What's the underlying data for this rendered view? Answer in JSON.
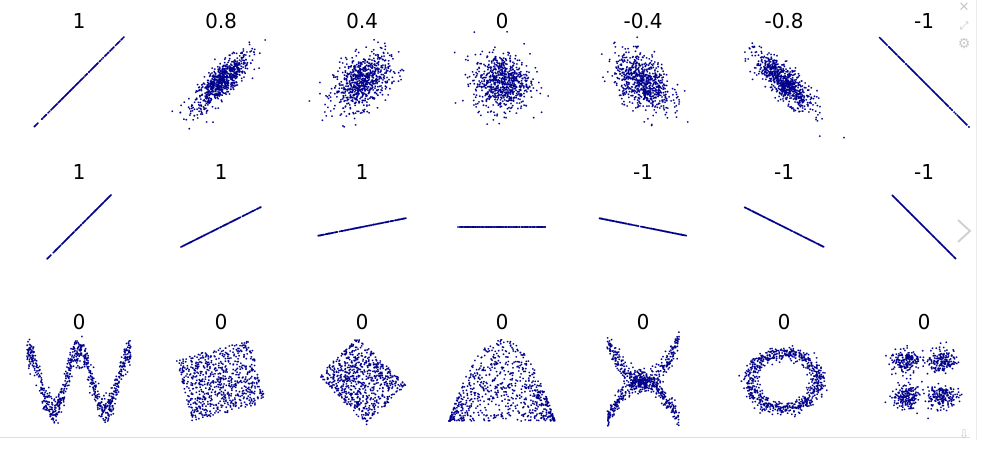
{
  "accent": "#00008b",
  "toolbar": {
    "close_icon": "close-icon",
    "expand_icon": "expand-icon",
    "settings_icon": "gear-icon",
    "next_icon": "chevron-right-icon",
    "download_icon": "download-icon"
  },
  "chart_data": [
    {
      "type": "scatter",
      "row": 1,
      "column": 1,
      "title": "1",
      "pattern": "linear",
      "correlation": 1
    },
    {
      "type": "scatter",
      "row": 1,
      "column": 2,
      "title": "0.8",
      "pattern": "gaussian-cloud",
      "correlation": 0.8
    },
    {
      "type": "scatter",
      "row": 1,
      "column": 3,
      "title": "0.4",
      "pattern": "gaussian-cloud",
      "correlation": 0.4
    },
    {
      "type": "scatter",
      "row": 1,
      "column": 4,
      "title": "0",
      "pattern": "gaussian-cloud",
      "correlation": 0
    },
    {
      "type": "scatter",
      "row": 1,
      "column": 5,
      "title": "-0.4",
      "pattern": "gaussian-cloud",
      "correlation": -0.4
    },
    {
      "type": "scatter",
      "row": 1,
      "column": 6,
      "title": "-0.8",
      "pattern": "gaussian-cloud",
      "correlation": -0.8
    },
    {
      "type": "scatter",
      "row": 1,
      "column": 7,
      "title": "-1",
      "pattern": "linear",
      "correlation": -1
    },
    {
      "type": "scatter",
      "row": 2,
      "column": 1,
      "title": "1",
      "pattern": "linear",
      "slope": 1.0
    },
    {
      "type": "scatter",
      "row": 2,
      "column": 2,
      "title": "1",
      "pattern": "linear",
      "slope": 0.5
    },
    {
      "type": "scatter",
      "row": 2,
      "column": 3,
      "title": "1",
      "pattern": "linear",
      "slope": 0.2
    },
    {
      "type": "scatter",
      "row": 2,
      "column": 4,
      "title": "",
      "pattern": "linear",
      "slope": 0
    },
    {
      "type": "scatter",
      "row": 2,
      "column": 5,
      "title": "-1",
      "pattern": "linear",
      "slope": -0.2
    },
    {
      "type": "scatter",
      "row": 2,
      "column": 6,
      "title": "-1",
      "pattern": "linear",
      "slope": -0.5
    },
    {
      "type": "scatter",
      "row": 2,
      "column": 7,
      "title": "-1",
      "pattern": "linear",
      "slope": -1.0
    },
    {
      "type": "scatter",
      "row": 3,
      "column": 1,
      "title": "0",
      "pattern": "wave"
    },
    {
      "type": "scatter",
      "row": 3,
      "column": 2,
      "title": "0",
      "pattern": "rotated-square"
    },
    {
      "type": "scatter",
      "row": 3,
      "column": 3,
      "title": "0",
      "pattern": "diamond"
    },
    {
      "type": "scatter",
      "row": 3,
      "column": 4,
      "title": "0",
      "pattern": "parabola"
    },
    {
      "type": "scatter",
      "row": 3,
      "column": 5,
      "title": "0",
      "pattern": "x-shape"
    },
    {
      "type": "scatter",
      "row": 3,
      "column": 6,
      "title": "0",
      "pattern": "ring"
    },
    {
      "type": "scatter",
      "row": 3,
      "column": 7,
      "title": "0",
      "pattern": "four-clusters"
    }
  ]
}
